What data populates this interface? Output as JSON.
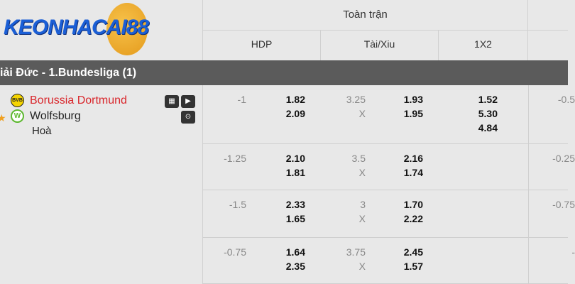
{
  "logo": {
    "text": "KEONHACAI88"
  },
  "header": {
    "title": "Toàn trận",
    "columns": [
      "HDP",
      "Tài/Xiu",
      "1X2"
    ]
  },
  "league": {
    "name": "iải Đức - 1.Bundesliga (1)"
  },
  "match": {
    "home": "Borussia Dortmund",
    "away": "Wolfsburg",
    "draw": "Hoà",
    "home_color": "#d9262b"
  },
  "rows": [
    {
      "hdp": "-1",
      "hdp_home": "1.82",
      "hdp_away": "2.09",
      "ou": "3.25",
      "ou_x": "X",
      "ou_over": "1.93",
      "ou_under": "1.95",
      "x12": [
        "1.52",
        "5.30",
        "4.84"
      ],
      "next": "-0.5"
    },
    {
      "hdp": "-1.25",
      "hdp_home": "2.10",
      "hdp_away": "1.81",
      "ou": "3.5",
      "ou_x": "X",
      "ou_over": "2.16",
      "ou_under": "1.74",
      "next": "-0.25"
    },
    {
      "hdp": "-1.5",
      "hdp_home": "2.33",
      "hdp_away": "1.65",
      "ou": "3",
      "ou_x": "X",
      "ou_over": "1.70",
      "ou_under": "2.22",
      "next": "-0.75"
    },
    {
      "hdp": "-0.75",
      "hdp_home": "1.64",
      "hdp_away": "2.35",
      "ou": "3.75",
      "ou_x": "X",
      "ou_over": "2.45",
      "ou_under": "1.57",
      "next": "-"
    }
  ]
}
